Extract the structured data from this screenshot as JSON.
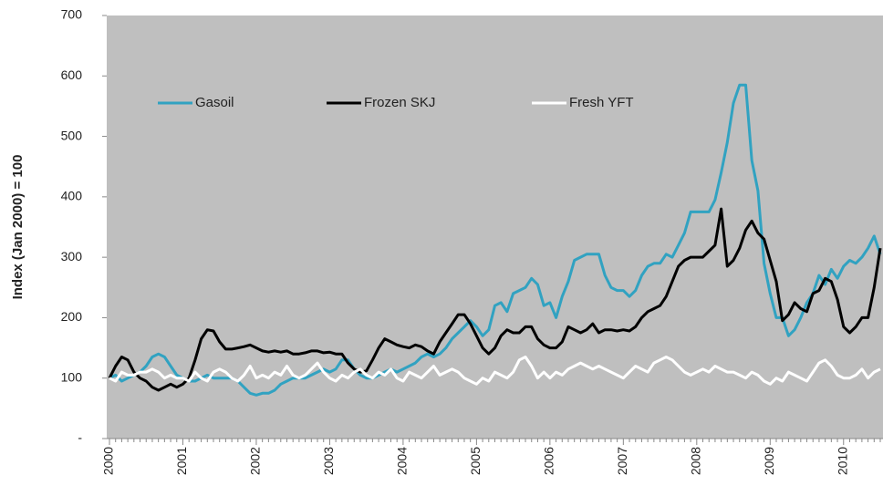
{
  "chart_data": {
    "type": "line",
    "y_label": "Index (Jan 2000) = 100",
    "categories": [
      "2000",
      null,
      null,
      null,
      null,
      null,
      null,
      null,
      null,
      null,
      null,
      null,
      "2001",
      null,
      null,
      null,
      null,
      null,
      null,
      null,
      null,
      null,
      null,
      null,
      "2002",
      null,
      null,
      null,
      null,
      null,
      null,
      null,
      null,
      null,
      null,
      null,
      "2003",
      null,
      null,
      null,
      null,
      null,
      null,
      null,
      null,
      null,
      null,
      null,
      "2004",
      null,
      null,
      null,
      null,
      null,
      null,
      null,
      null,
      null,
      null,
      null,
      "2005",
      null,
      null,
      null,
      null,
      null,
      null,
      null,
      null,
      null,
      null,
      null,
      "2006",
      null,
      null,
      null,
      null,
      null,
      null,
      null,
      null,
      null,
      null,
      null,
      "2007",
      null,
      null,
      null,
      null,
      null,
      null,
      null,
      null,
      null,
      null,
      null,
      "2008",
      null,
      null,
      null,
      null,
      null,
      null,
      null,
      null,
      null,
      null,
      null,
      "2009",
      null,
      null,
      null,
      null,
      null,
      null,
      null,
      null,
      null,
      null,
      null,
      "2010",
      null,
      null,
      null,
      null,
      null,
      null
    ],
    "series": [
      {
        "name": "Gasoil",
        "color": "#31a2c1",
        "values": [
          100,
          105,
          95,
          100,
          105,
          110,
          120,
          135,
          140,
          135,
          120,
          105,
          100,
          95,
          95,
          100,
          105,
          100,
          100,
          100,
          100,
          95,
          85,
          75,
          72,
          75,
          75,
          80,
          90,
          95,
          100,
          100,
          100,
          105,
          110,
          115,
          110,
          115,
          130,
          130,
          115,
          105,
          100,
          100,
          105,
          110,
          115,
          110,
          115,
          120,
          125,
          135,
          140,
          135,
          140,
          150,
          165,
          175,
          185,
          195,
          185,
          170,
          180,
          220,
          225,
          210,
          240,
          245,
          250,
          265,
          255,
          220,
          225,
          200,
          235,
          260,
          295,
          300,
          305,
          305,
          305,
          270,
          250,
          245,
          245,
          235,
          245,
          270,
          285,
          290,
          290,
          305,
          300,
          320,
          340,
          375,
          375,
          375,
          375,
          395,
          440,
          490,
          555,
          585,
          585,
          460,
          410,
          290,
          240,
          200,
          200,
          170,
          180,
          200,
          225,
          240,
          270,
          255,
          280,
          265,
          285,
          295,
          290,
          300,
          315,
          335,
          305
        ]
      },
      {
        "name": "Frozen SKJ",
        "color": "#000000",
        "values": [
          100,
          120,
          135,
          130,
          110,
          100,
          95,
          85,
          80,
          85,
          90,
          85,
          90,
          100,
          130,
          165,
          180,
          178,
          160,
          148,
          148,
          150,
          152,
          155,
          150,
          145,
          143,
          145,
          143,
          145,
          140,
          140,
          142,
          145,
          145,
          142,
          143,
          140,
          140,
          125,
          115,
          110,
          112,
          130,
          150,
          165,
          160,
          155,
          152,
          150,
          155,
          152,
          145,
          140,
          160,
          175,
          190,
          205,
          205,
          190,
          170,
          150,
          140,
          150,
          170,
          180,
          175,
          175,
          185,
          185,
          165,
          155,
          150,
          150,
          160,
          185,
          180,
          175,
          180,
          190,
          175,
          180,
          180,
          178,
          180,
          178,
          185,
          200,
          210,
          215,
          220,
          235,
          260,
          285,
          295,
          300,
          300,
          300,
          310,
          320,
          380,
          285,
          295,
          315,
          345,
          360,
          340,
          330,
          295,
          260,
          195,
          205,
          225,
          215,
          210,
          240,
          245,
          265,
          260,
          230,
          185,
          175,
          185,
          200,
          200,
          250,
          315
        ]
      },
      {
        "name": "Fresh YFT",
        "color": "#ffffff",
        "values": [
          100,
          95,
          110,
          105,
          105,
          110,
          110,
          115,
          110,
          100,
          105,
          100,
          100,
          95,
          110,
          100,
          95,
          110,
          115,
          110,
          100,
          95,
          105,
          120,
          100,
          105,
          100,
          110,
          105,
          120,
          105,
          100,
          105,
          115,
          125,
          110,
          100,
          95,
          105,
          100,
          110,
          115,
          105,
          100,
          110,
          105,
          115,
          100,
          95,
          110,
          105,
          100,
          110,
          120,
          105,
          110,
          115,
          110,
          100,
          95,
          90,
          100,
          95,
          110,
          105,
          100,
          110,
          130,
          135,
          120,
          100,
          110,
          100,
          110,
          105,
          115,
          120,
          125,
          120,
          115,
          120,
          115,
          110,
          105,
          100,
          110,
          120,
          115,
          110,
          125,
          130,
          135,
          130,
          120,
          110,
          105,
          110,
          115,
          110,
          120,
          115,
          110,
          110,
          105,
          100,
          110,
          105,
          95,
          90,
          100,
          95,
          110,
          105,
          100,
          95,
          110,
          125,
          130,
          120,
          105,
          100,
          100,
          105,
          115,
          100,
          110,
          115
        ]
      }
    ],
    "ylim": [
      0,
      700
    ],
    "yticks": [
      {
        "value": 0,
        "label": "-"
      },
      100,
      200,
      300,
      400,
      500,
      600,
      700
    ],
    "grid": false,
    "legend": "upper left",
    "plot_background": "#bfbfbf"
  }
}
